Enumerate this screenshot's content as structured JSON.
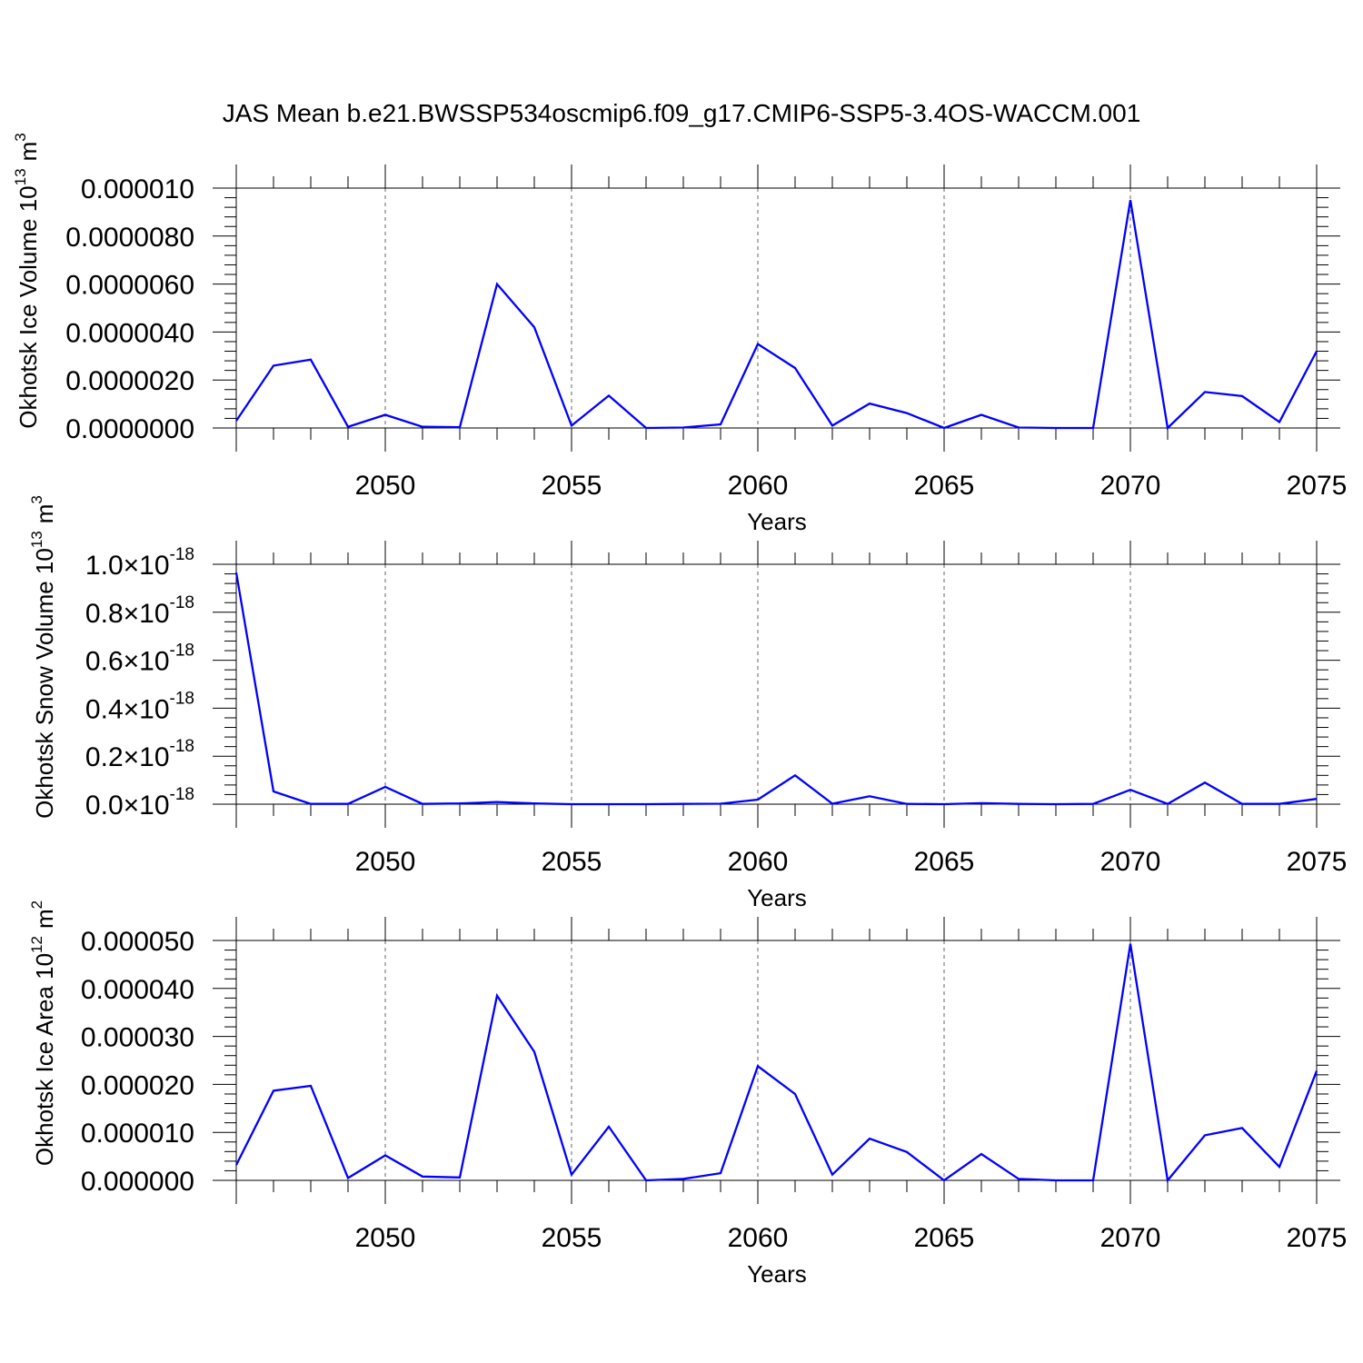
{
  "title": "JAS Mean b.e21.BWSSP534oscmip6.f09_g17.CMIP6-SSP5-3.4OS-WACCM.001",
  "chart_data": [
    {
      "type": "line",
      "ylabel": "Okhotsk Ice Volume 10",
      "ylabel_sup": "13",
      "ylabel_unit": "m",
      "ylabel_unit_sup": "3",
      "xlabel": "Years",
      "xlim": [
        2046,
        2075
      ],
      "ylim": [
        0,
        1e-05
      ],
      "x_ticks": [
        "2050",
        "2055",
        "2060",
        "2065",
        "2070",
        "2075"
      ],
      "y_ticks": [
        {
          "value": 1e-05,
          "label": "0.000010"
        },
        {
          "value": 8e-06,
          "label": "0.0000080"
        },
        {
          "value": 6e-06,
          "label": "0.0000060"
        },
        {
          "value": 4e-06,
          "label": "0.0000040"
        },
        {
          "value": 2e-06,
          "label": "0.0000020"
        },
        {
          "value": 0,
          "label": "0.0000000"
        }
      ],
      "series": [
        {
          "name": "Okhotsk Ice Volume",
          "color": "#0000ff",
          "x": [
            2046,
            2047,
            2048,
            2049,
            2050,
            2051,
            2052,
            2053,
            2054,
            2055,
            2056,
            2057,
            2058,
            2059,
            2060,
            2061,
            2062,
            2063,
            2064,
            2065,
            2066,
            2067,
            2068,
            2069,
            2070,
            2071,
            2072,
            2073,
            2074,
            2075
          ],
          "values": [
            3e-07,
            2.6e-06,
            2.85e-06,
            5e-08,
            5.5e-07,
            5e-08,
            3e-08,
            6e-06,
            4.2e-06,
            1e-07,
            1.35e-06,
            0.0,
            2e-08,
            1.5e-07,
            3.5e-06,
            2.5e-06,
            1e-07,
            1.02e-06,
            6.2e-07,
            0.0,
            5.5e-07,
            2e-08,
            0.0,
            0.0,
            9.5e-06,
            0.0,
            1.5e-06,
            1.33e-06,
            2.5e-07,
            3.2e-06
          ]
        }
      ]
    },
    {
      "type": "line",
      "ylabel": "Okhotsk Snow Volume 10",
      "ylabel_sup": "13",
      "ylabel_unit": "m",
      "ylabel_unit_sup": "3",
      "xlabel": "Years",
      "xlim": [
        2046,
        2075
      ],
      "ylim": [
        0,
        1e-18
      ],
      "x_ticks": [
        "2050",
        "2055",
        "2060",
        "2065",
        "2070",
        "2075"
      ],
      "y_ticks": [
        {
          "value": 1e-18,
          "label": "1.0",
          "times": "×10",
          "exp": "-18"
        },
        {
          "value": 8e-19,
          "label": "0.8",
          "times": "×10",
          "exp": "-18"
        },
        {
          "value": 6e-19,
          "label": "0.6",
          "times": "×10",
          "exp": "-18"
        },
        {
          "value": 4e-19,
          "label": "0.4",
          "times": "×10",
          "exp": "-18"
        },
        {
          "value": 2e-19,
          "label": "0.2",
          "times": "×10",
          "exp": "-18"
        },
        {
          "value": 0,
          "label": "0.0",
          "times": "×10",
          "exp": "-18"
        }
      ],
      "series": [
        {
          "name": "Okhotsk Snow Volume",
          "color": "#0000ff",
          "x": [
            2046,
            2047,
            2048,
            2049,
            2050,
            2051,
            2052,
            2053,
            2054,
            2055,
            2056,
            2057,
            2058,
            2059,
            2060,
            2061,
            2062,
            2063,
            2064,
            2065,
            2066,
            2067,
            2068,
            2069,
            2070,
            2071,
            2072,
            2073,
            2074,
            2075
          ],
          "values": [
            9.65e-19,
            5.3e-20,
            1e-21,
            1e-21,
            7.2e-20,
            1e-21,
            3e-21,
            9e-21,
            3e-21,
            0.0,
            0.0,
            0.0,
            1e-21,
            2e-21,
            1.9e-20,
            1.2e-19,
            2e-21,
            3.3e-20,
            1e-21,
            0.0,
            4e-21,
            1e-21,
            0.0,
            1e-21,
            6e-20,
            1e-21,
            9e-20,
            1e-21,
            1e-21,
            2.2e-20
          ]
        }
      ]
    },
    {
      "type": "line",
      "ylabel": "Okhotsk Ice Area 10",
      "ylabel_sup": "12",
      "ylabel_unit": "m",
      "ylabel_unit_sup": "2",
      "xlabel": "Years",
      "xlim": [
        2046,
        2075
      ],
      "ylim": [
        0,
        5e-05
      ],
      "x_ticks": [
        "2050",
        "2055",
        "2060",
        "2065",
        "2070",
        "2075"
      ],
      "y_ticks": [
        {
          "value": 5e-05,
          "label": "0.000050"
        },
        {
          "value": 4e-05,
          "label": "0.000040"
        },
        {
          "value": 3e-05,
          "label": "0.000030"
        },
        {
          "value": 2e-05,
          "label": "0.000020"
        },
        {
          "value": 1e-05,
          "label": "0.000010"
        },
        {
          "value": 0,
          "label": "0.000000"
        }
      ],
      "series": [
        {
          "name": "Okhotsk Ice Area",
          "color": "#0000ff",
          "x": [
            2046,
            2047,
            2048,
            2049,
            2050,
            2051,
            2052,
            2053,
            2054,
            2055,
            2056,
            2057,
            2058,
            2059,
            2060,
            2061,
            2062,
            2063,
            2064,
            2065,
            2066,
            2067,
            2068,
            2069,
            2070,
            2071,
            2072,
            2073,
            2074,
            2075
          ],
          "values": [
            3.2e-06,
            1.87e-05,
            1.97e-05,
            5e-07,
            5.2e-06,
            8e-07,
            6e-07,
            3.85e-05,
            2.68e-05,
            1.2e-06,
            1.12e-05,
            0.0,
            3e-07,
            1.5e-06,
            2.38e-05,
            1.8e-05,
            1.2e-06,
            8.7e-06,
            5.9e-06,
            0.0,
            5.5e-06,
            3e-07,
            0.0,
            0.0,
            4.93e-05,
            0.0,
            9.4e-06,
            1.09e-05,
            2.8e-06,
            2.28e-05
          ]
        }
      ]
    }
  ]
}
